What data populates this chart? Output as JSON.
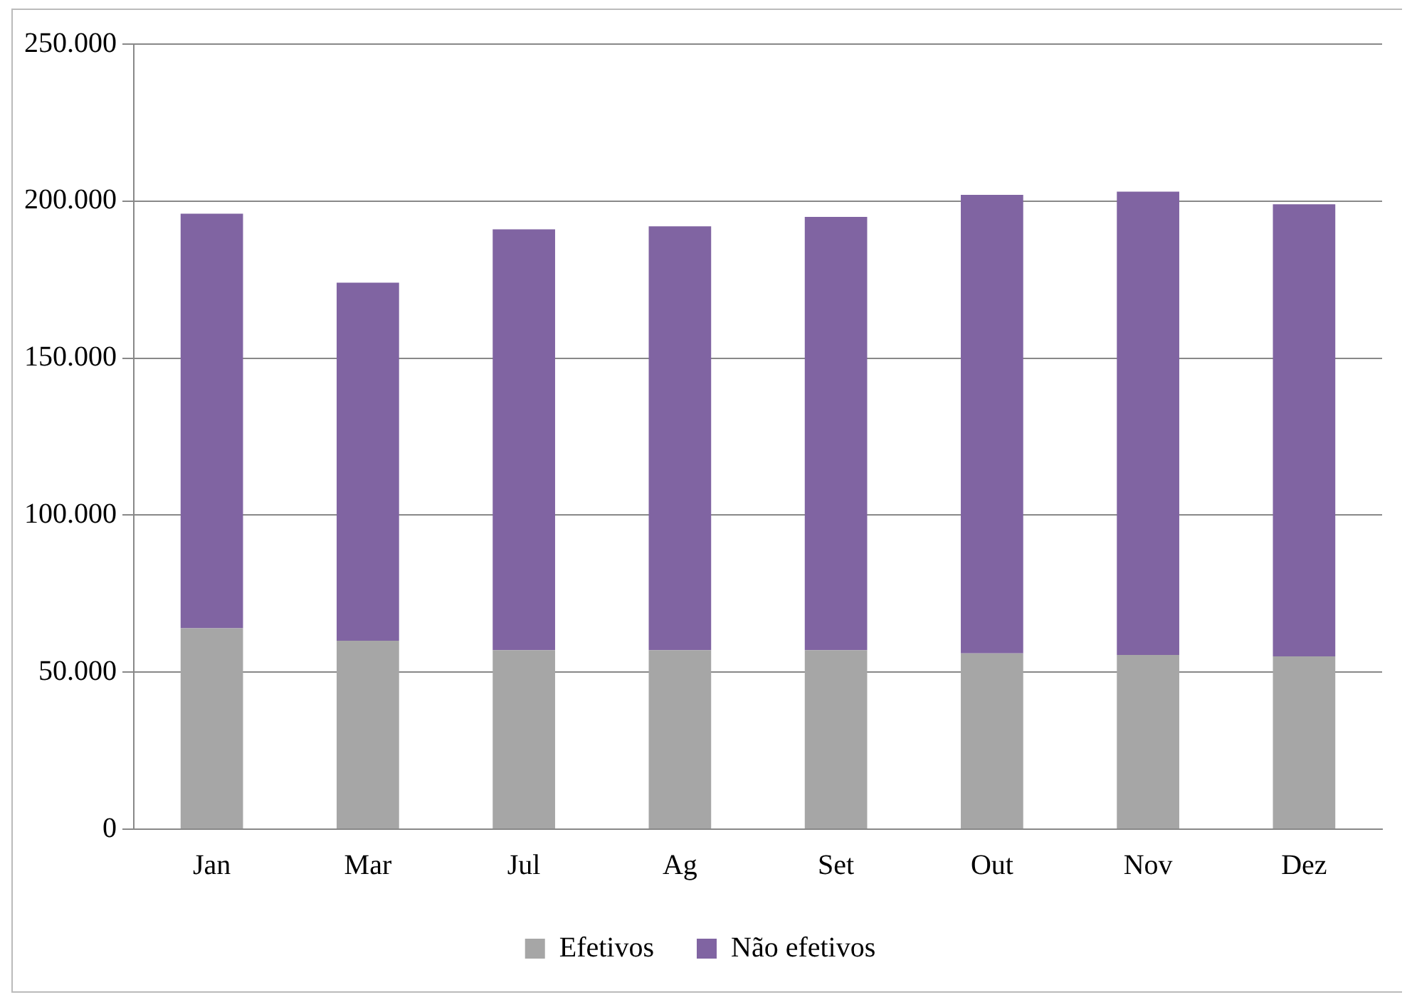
{
  "chart_data": {
    "type": "bar",
    "stacked": true,
    "categories": [
      "Jan",
      "Mar",
      "Jul",
      "Ag",
      "Set",
      "Out",
      "Nov",
      "Dez"
    ],
    "series": [
      {
        "name": "Efetivos",
        "color": "#a6a6a6",
        "values": [
          64000,
          60000,
          57000,
          57000,
          57000,
          56000,
          55500,
          55000
        ]
      },
      {
        "name": "Não efetivos",
        "color": "#8064a2",
        "values": [
          132000,
          114000,
          134000,
          135000,
          138000,
          146000,
          147500,
          144000
        ]
      }
    ],
    "ylim": [
      0,
      250000
    ],
    "yticks": [
      {
        "value": 0,
        "label": "0"
      },
      {
        "value": 50000,
        "label": "50.000"
      },
      {
        "value": 100000,
        "label": "100.000"
      },
      {
        "value": 150000,
        "label": "150.000"
      },
      {
        "value": 200000,
        "label": "200.000"
      },
      {
        "value": 250000,
        "label": "250.000"
      }
    ],
    "grid": "y",
    "legend": "bottom"
  }
}
